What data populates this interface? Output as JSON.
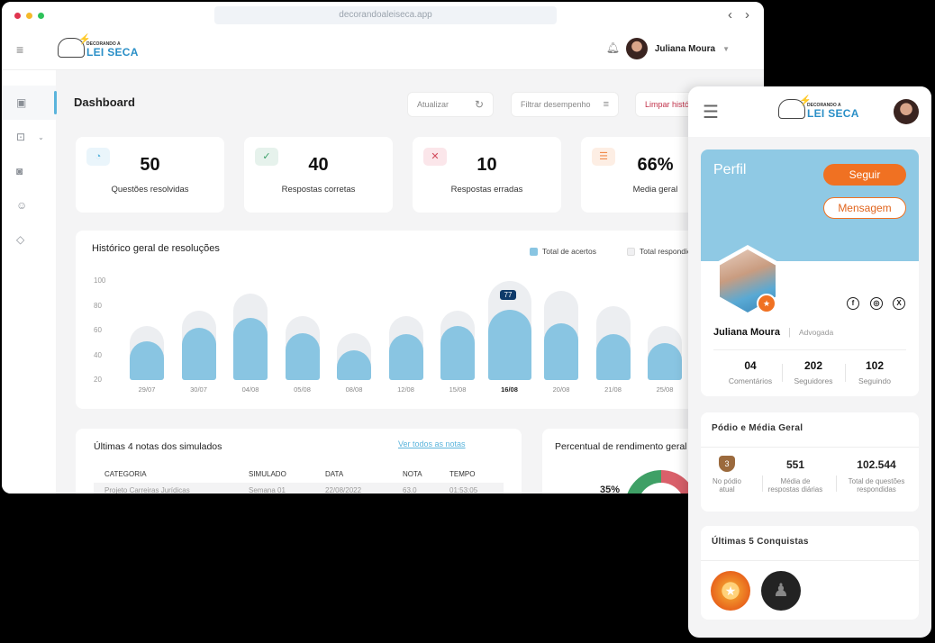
{
  "browser": {
    "url": "decorandoaleiseca.app",
    "dots_colors": [
      "#e0344f",
      "#f5b92a",
      "#2ec25a"
    ]
  },
  "header": {
    "logo_small": "DECORANDO A",
    "logo_big": "LEI SECA",
    "user_name": "Juliana Moura"
  },
  "sidebar": {
    "items": [
      {
        "icon": "dashboard-icon"
      },
      {
        "icon": "search-book-icon"
      },
      {
        "icon": "settings-book-icon"
      },
      {
        "icon": "group-icon"
      },
      {
        "icon": "diamond-icon"
      }
    ]
  },
  "page": {
    "title": "Dashboard"
  },
  "toolbar": {
    "refresh_label": "Atualizar",
    "filter_label": "Filtrar desempenho",
    "clear_label": "Limpar histó"
  },
  "stats": [
    {
      "value": "50",
      "label": "Questões resolvidas",
      "icon": "pie-icon",
      "color": "#5ab4dc"
    },
    {
      "value": "40",
      "label": "Respostas corretas",
      "icon": "check-icon",
      "color": "#3ba06a"
    },
    {
      "value": "10",
      "label": "Respostas erradas",
      "icon": "x-icon",
      "color": "#d2485a"
    },
    {
      "value": "66%",
      "label": "Media geral",
      "icon": "list-icon",
      "color": "#f08a4b"
    }
  ],
  "chart_data": {
    "type": "bar",
    "title": "Histórico geral de resoluções",
    "categories": [
      "29/07",
      "30/07",
      "04/08",
      "05/08",
      "08/08",
      "12/08",
      "15/08",
      "16/08",
      "20/08",
      "21/08",
      "25/08"
    ],
    "series": [
      {
        "name": "Total de acertos",
        "color": "#89c5e2",
        "values": [
          51,
          62,
          70,
          58,
          44,
          57,
          64,
          77,
          66,
          57,
          50
        ]
      },
      {
        "name": "Total respondidas",
        "color": "#eceef1",
        "values": [
          64,
          76,
          90,
          72,
          58,
          72,
          76,
          100,
          92,
          80,
          64
        ]
      }
    ],
    "highlighted": {
      "category": "16/08",
      "label": "77"
    },
    "yticks": [
      100,
      80,
      60,
      40,
      20
    ],
    "ylim": [
      20,
      100
    ],
    "legend_labels": [
      "Total de acertos",
      "Total respondic"
    ],
    "legend_position": "top-right"
  },
  "notas": {
    "title": "Últimas 4 notas dos simulados",
    "link": "Ver todos as notas",
    "columns": [
      "CATEGORIA",
      "SIMULADO",
      "DATA",
      "NOTA",
      "TEMPO"
    ],
    "rows": [
      [
        "Projeto Carreiras Jurídicas",
        "Semana 01",
        "22/08/2022",
        "63.0",
        "01:53:05"
      ]
    ]
  },
  "rendimento": {
    "title": "Percentual de rendimento geral",
    "percent": "35%"
  },
  "mobile": {
    "logo_small": "DECORANDO A",
    "logo_big": "LEI SECA",
    "profile_title": "Perfil",
    "follow": "Seguir",
    "message": "Mensagem",
    "name": "Juliana Moura",
    "role": "Advogada",
    "counts": [
      {
        "value": "04",
        "label": "Comentários"
      },
      {
        "value": "202",
        "label": "Seguidores"
      },
      {
        "value": "102",
        "label": "Seguindo"
      }
    ],
    "social": [
      "f",
      "◎",
      "X"
    ],
    "podium": {
      "title": "Pódio e Média Geral",
      "rank": "3",
      "rank_label": "No pódio atual",
      "daily_value": "551",
      "daily_label": "Média de respostas diárias",
      "total_value": "102.544",
      "total_label": "Total de questões respondidas"
    },
    "achievements": {
      "title": "Últimas 5 Conquistas"
    }
  }
}
